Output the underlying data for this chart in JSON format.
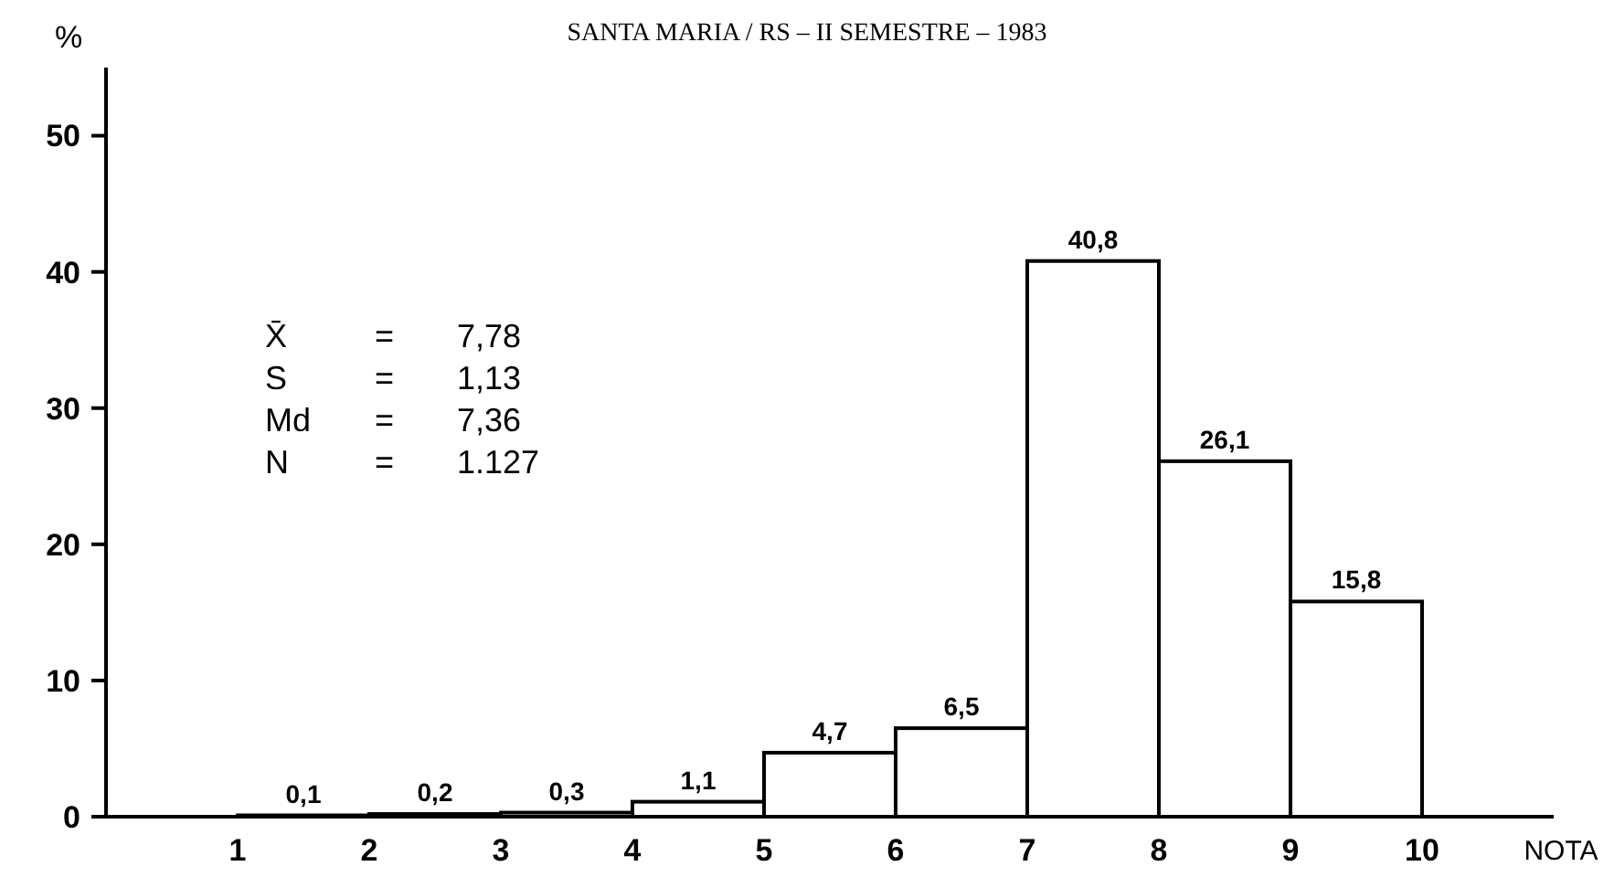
{
  "chart_data": {
    "type": "histogram",
    "title": "SANTA MARIA / RS  –  II SEMESTRE  –  1983",
    "xlabel": "NOTA",
    "ylabel": "%",
    "bins": [
      1,
      2,
      3,
      4,
      5,
      6,
      7,
      8,
      9,
      10
    ],
    "values": [
      0.1,
      0.2,
      0.3,
      1.1,
      4.7,
      6.5,
      40.8,
      26.1,
      15.8
    ],
    "value_labels": [
      "0,1",
      "0,2",
      "0,3",
      "1,1",
      "4,7",
      "6,5",
      "40,8",
      "26,1",
      "15,8"
    ],
    "color": "#ffffff",
    "xlim": [
      0,
      11
    ],
    "xticks": [
      1,
      2,
      3,
      4,
      5,
      6,
      7,
      8,
      9,
      10
    ],
    "ylim": [
      0,
      55
    ],
    "yticks": [
      0,
      10,
      20,
      30,
      40,
      50
    ],
    "grid": false,
    "annotations": [
      "X̄ = 7,78",
      "S = 1,13",
      "Md = 7,36",
      "N = 1.127"
    ]
  }
}
